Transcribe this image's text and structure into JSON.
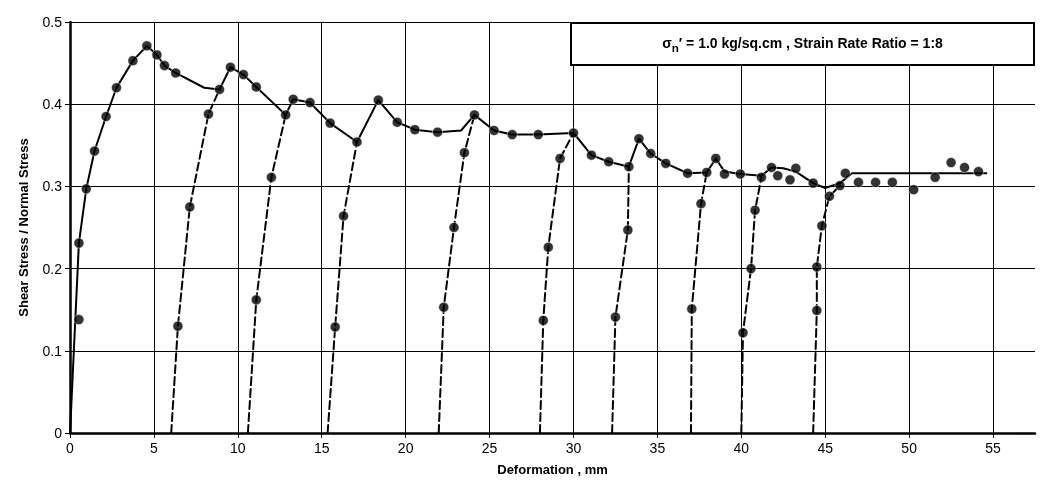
{
  "chart_data": {
    "type": "line",
    "xlabel": "Deformation , mm",
    "ylabel": "Shear Stress / Normal Stress",
    "annotations": [
      "σ$_{n}$′ = 1.0 kg/sq.cm , Strain Rate Ratio = 1:8"
    ],
    "xlim": [
      0,
      57.5
    ],
    "xticks": [
      0,
      5,
      10,
      15,
      20,
      25,
      30,
      35,
      40,
      45,
      50,
      55
    ],
    "ylim": [
      0,
      0.5
    ],
    "yticks": [
      0,
      0.1,
      0.2,
      0.3,
      0.4,
      0.5
    ],
    "grid": true,
    "series": [
      {
        "color": "#000000",
        "line_style": "solid",
        "marker": "none",
        "x": [
          0,
          0.53,
          0.97,
          1.46,
          2.15,
          2.77,
          3.75,
          4.58,
          5.18,
          5.63,
          6.3,
          8.0,
          8.91,
          9.56,
          10.33,
          11.1,
          12.85,
          13.3,
          14.3,
          15.5,
          17.1,
          18.37,
          19.5,
          20.55,
          21.9,
          23.3,
          24.1,
          25.27,
          26.35,
          27.9,
          30.0,
          31.07,
          32.1,
          33.3,
          33.9,
          34.6,
          35.5,
          36.8,
          37.94,
          38.48,
          39.0,
          39.94,
          41.2,
          41.8,
          42.5,
          43.25,
          44.28,
          45.0,
          45.88,
          46.6,
          54.6
        ],
        "values": [
          0,
          0.231,
          0.297,
          0.343,
          0.385,
          0.42,
          0.453,
          0.471,
          0.46,
          0.447,
          0.438,
          0.42,
          0.418,
          0.445,
          0.436,
          0.421,
          0.387,
          0.406,
          0.402,
          0.377,
          0.354,
          0.405,
          0.378,
          0.369,
          0.366,
          0.368,
          0.387,
          0.368,
          0.363,
          0.363,
          0.365,
          0.338,
          0.33,
          0.324,
          0.358,
          0.34,
          0.328,
          0.316,
          0.317,
          0.334,
          0.318,
          0.315,
          0.313,
          0.323,
          0.322,
          0.318,
          0.304,
          0.298,
          0.304,
          0.316,
          0.316
        ]
      },
      {
        "color": "#000000",
        "line_style": "dashed",
        "marker": "none",
        "x": [
          6.03,
          6.43,
          7.14,
          8.25,
          8.91,
          9.7,
          10.6,
          11.1,
          12.0,
          12.85,
          14.1,
          15.35,
          15.8,
          16.3,
          17.1,
          19.5,
          21.97,
          22.27,
          22.88,
          23.5,
          24.1,
          26.0,
          28.0,
          28.2,
          28.5,
          29.2,
          30.0,
          31.1,
          32.3,
          32.5,
          33.24,
          33.3,
          35.1,
          37.0,
          37.05,
          37.6,
          37.94,
          39.0,
          40.0,
          40.1,
          40.58,
          40.82,
          41.2,
          42.7,
          44.28,
          44.5,
          44.5,
          44.8,
          45.25,
          45.88
        ],
        "values": [
          0,
          0.13,
          0.275,
          0.388,
          0.418,
          null,
          0,
          0.162,
          0.311,
          0.387,
          null,
          0,
          0.129,
          0.264,
          0.354,
          null,
          0,
          0.153,
          0.25,
          0.341,
          0.387,
          null,
          0,
          0.137,
          0.226,
          0.334,
          0.365,
          null,
          0,
          0.141,
          0.247,
          0.324,
          null,
          0,
          0.151,
          0.279,
          0.317,
          null,
          0,
          0.122,
          0.2,
          0.271,
          0.311,
          null,
          0,
          0.149,
          0.202,
          0.252,
          0.288,
          0.301
        ]
      },
      {
        "type": "scatter",
        "color": "#000000",
        "marker": "circle",
        "x": [
          0.53,
          0.53,
          0.97,
          1.46,
          2.15,
          2.77,
          3.75,
          4.58,
          5.18,
          5.63,
          6.3,
          6.43,
          7.14,
          8.25,
          8.91,
          9.56,
          10.33,
          11.1,
          11.1,
          12.0,
          12.85,
          13.3,
          14.3,
          15.5,
          15.8,
          16.3,
          17.1,
          18.37,
          19.5,
          20.55,
          21.9,
          22.27,
          22.88,
          23.5,
          24.1,
          25.27,
          26.35,
          27.9,
          28.2,
          28.5,
          29.2,
          30.0,
          31.07,
          32.1,
          32.5,
          33.24,
          33.3,
          33.9,
          34.6,
          35.5,
          36.8,
          37.05,
          37.6,
          37.94,
          38.48,
          39.0,
          39.94,
          40.1,
          40.58,
          40.82,
          41.2,
          41.8,
          42.17,
          42.9,
          43.25,
          44.28,
          44.5,
          44.5,
          44.8,
          45.25,
          45.88,
          46.2,
          46.98,
          48.0,
          49.0,
          50.27,
          51.55,
          52.5,
          53.3,
          54.13
        ],
        "values": [
          0.138,
          0.231,
          0.297,
          0.343,
          0.385,
          0.42,
          0.453,
          0.471,
          0.46,
          0.447,
          0.438,
          0.13,
          0.275,
          0.388,
          0.418,
          0.445,
          0.436,
          0.421,
          0.162,
          0.311,
          0.387,
          0.406,
          0.402,
          0.377,
          0.129,
          0.264,
          0.354,
          0.405,
          0.378,
          0.369,
          0.366,
          0.153,
          0.25,
          0.341,
          0.387,
          0.368,
          0.363,
          0.363,
          0.137,
          0.226,
          0.334,
          0.365,
          0.338,
          0.33,
          0.141,
          0.247,
          0.324,
          0.358,
          0.34,
          0.328,
          0.316,
          0.151,
          0.279,
          0.317,
          0.334,
          0.315,
          0.315,
          0.122,
          0.2,
          0.271,
          0.311,
          0.323,
          0.313,
          0.308,
          0.322,
          0.304,
          0.149,
          0.202,
          0.252,
          0.288,
          0.301,
          0.316,
          0.305,
          0.305,
          0.305,
          0.296,
          0.311,
          0.329,
          0.323,
          0.318
        ]
      }
    ]
  }
}
